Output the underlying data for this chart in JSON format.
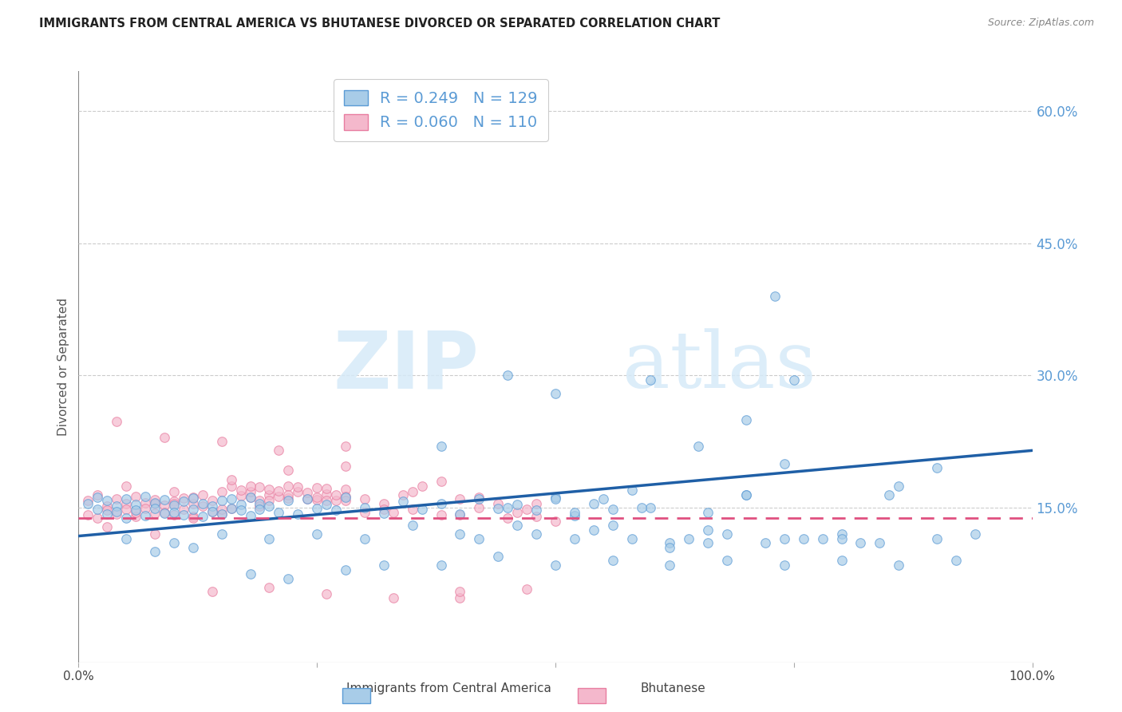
{
  "title": "IMMIGRANTS FROM CENTRAL AMERICA VS BHUTANESE DIVORCED OR SEPARATED CORRELATION CHART",
  "source": "Source: ZipAtlas.com",
  "ylabel": "Divorced or Separated",
  "ytick_labels": [
    "60.0%",
    "45.0%",
    "30.0%",
    "15.0%"
  ],
  "ytick_values": [
    0.6,
    0.45,
    0.3,
    0.15
  ],
  "xmin": 0.0,
  "xmax": 1.0,
  "ymin": -0.025,
  "ymax": 0.645,
  "legend_blue_r": "0.249",
  "legend_blue_n": "129",
  "legend_pink_r": "0.060",
  "legend_pink_n": "110",
  "legend_label_blue": "Immigrants from Central America",
  "legend_label_pink": "Bhutanese",
  "watermark_zip": "ZIP",
  "watermark_atlas": "atlas",
  "blue_color": "#a8cce8",
  "blue_edge_color": "#5b9bd5",
  "blue_line_color": "#1f5fa6",
  "pink_color": "#f4b8cc",
  "pink_edge_color": "#e87da0",
  "pink_line_color": "#e05080",
  "background": "#ffffff",
  "grid_color": "#cccccc",
  "blue_scatter_x": [
    0.01,
    0.02,
    0.02,
    0.03,
    0.03,
    0.04,
    0.04,
    0.05,
    0.05,
    0.06,
    0.06,
    0.07,
    0.07,
    0.08,
    0.08,
    0.09,
    0.09,
    0.1,
    0.1,
    0.11,
    0.11,
    0.12,
    0.12,
    0.13,
    0.13,
    0.14,
    0.14,
    0.15,
    0.15,
    0.16,
    0.16,
    0.17,
    0.17,
    0.18,
    0.18,
    0.19,
    0.19,
    0.2,
    0.21,
    0.22,
    0.23,
    0.24,
    0.25,
    0.26,
    0.27,
    0.28,
    0.3,
    0.32,
    0.34,
    0.36,
    0.38,
    0.4,
    0.42,
    0.44,
    0.46,
    0.48,
    0.5,
    0.52,
    0.54,
    0.56,
    0.38,
    0.42,
    0.46,
    0.5,
    0.54,
    0.58,
    0.62,
    0.66,
    0.7,
    0.74,
    0.48,
    0.52,
    0.56,
    0.6,
    0.64,
    0.68,
    0.72,
    0.76,
    0.8,
    0.84,
    0.58,
    0.62,
    0.66,
    0.7,
    0.74,
    0.78,
    0.82,
    0.86,
    0.9,
    0.94,
    0.6,
    0.65,
    0.7,
    0.75,
    0.8,
    0.85,
    0.9,
    0.5,
    0.55,
    0.45,
    0.4,
    0.35,
    0.3,
    0.25,
    0.2,
    0.15,
    0.1,
    0.05,
    0.08,
    0.12,
    0.18,
    0.22,
    0.28,
    0.32,
    0.38,
    0.44,
    0.5,
    0.56,
    0.62,
    0.68,
    0.74,
    0.8,
    0.86,
    0.92,
    0.45,
    0.52,
    0.59,
    0.66,
    0.73
  ],
  "blue_scatter_y": [
    0.155,
    0.148,
    0.162,
    0.143,
    0.158,
    0.152,
    0.146,
    0.16,
    0.138,
    0.154,
    0.147,
    0.163,
    0.141,
    0.156,
    0.149,
    0.144,
    0.159,
    0.153,
    0.145,
    0.157,
    0.142,
    0.161,
    0.148,
    0.155,
    0.14,
    0.152,
    0.146,
    0.158,
    0.143,
    0.16,
    0.149,
    0.154,
    0.147,
    0.162,
    0.141,
    0.155,
    0.148,
    0.152,
    0.145,
    0.158,
    0.143,
    0.16,
    0.149,
    0.154,
    0.147,
    0.162,
    0.15,
    0.144,
    0.157,
    0.148,
    0.155,
    0.143,
    0.16,
    0.149,
    0.154,
    0.147,
    0.162,
    0.141,
    0.155,
    0.148,
    0.22,
    0.115,
    0.13,
    0.28,
    0.125,
    0.17,
    0.11,
    0.125,
    0.165,
    0.115,
    0.12,
    0.115,
    0.13,
    0.15,
    0.115,
    0.12,
    0.11,
    0.115,
    0.12,
    0.11,
    0.115,
    0.105,
    0.11,
    0.165,
    0.2,
    0.115,
    0.11,
    0.175,
    0.115,
    0.12,
    0.295,
    0.22,
    0.25,
    0.295,
    0.115,
    0.165,
    0.195,
    0.16,
    0.16,
    0.3,
    0.12,
    0.13,
    0.115,
    0.12,
    0.115,
    0.12,
    0.11,
    0.115,
    0.1,
    0.105,
    0.075,
    0.07,
    0.08,
    0.085,
    0.085,
    0.095,
    0.085,
    0.09,
    0.085,
    0.09,
    0.085,
    0.09,
    0.085,
    0.09,
    0.15,
    0.145,
    0.15,
    0.145,
    0.39
  ],
  "pink_scatter_x": [
    0.01,
    0.01,
    0.02,
    0.02,
    0.03,
    0.03,
    0.04,
    0.04,
    0.05,
    0.05,
    0.06,
    0.06,
    0.07,
    0.07,
    0.08,
    0.08,
    0.09,
    0.09,
    0.1,
    0.1,
    0.11,
    0.11,
    0.12,
    0.12,
    0.13,
    0.13,
    0.14,
    0.14,
    0.15,
    0.15,
    0.16,
    0.16,
    0.17,
    0.17,
    0.18,
    0.18,
    0.19,
    0.19,
    0.2,
    0.2,
    0.21,
    0.21,
    0.22,
    0.22,
    0.23,
    0.23,
    0.24,
    0.24,
    0.25,
    0.25,
    0.26,
    0.26,
    0.27,
    0.27,
    0.28,
    0.28,
    0.3,
    0.32,
    0.34,
    0.36,
    0.38,
    0.4,
    0.42,
    0.44,
    0.46,
    0.48,
    0.5,
    0.1,
    0.15,
    0.2,
    0.25,
    0.3,
    0.35,
    0.4,
    0.45,
    0.08,
    0.12,
    0.18,
    0.22,
    0.28,
    0.32,
    0.38,
    0.05,
    0.1,
    0.16,
    0.22,
    0.28,
    0.35,
    0.42,
    0.48,
    0.06,
    0.12,
    0.19,
    0.26,
    0.33,
    0.4,
    0.47,
    0.03,
    0.08,
    0.14,
    0.2,
    0.26,
    0.33,
    0.4,
    0.47,
    0.04,
    0.09,
    0.15,
    0.21,
    0.28
  ],
  "pink_scatter_y": [
    0.158,
    0.142,
    0.165,
    0.138,
    0.152,
    0.147,
    0.16,
    0.143,
    0.155,
    0.148,
    0.163,
    0.14,
    0.156,
    0.149,
    0.144,
    0.159,
    0.153,
    0.145,
    0.157,
    0.142,
    0.161,
    0.148,
    0.155,
    0.14,
    0.152,
    0.165,
    0.146,
    0.158,
    0.143,
    0.168,
    0.149,
    0.175,
    0.164,
    0.17,
    0.162,
    0.168,
    0.174,
    0.158,
    0.165,
    0.171,
    0.163,
    0.169,
    0.175,
    0.161,
    0.168,
    0.174,
    0.16,
    0.167,
    0.173,
    0.159,
    0.166,
    0.172,
    0.158,
    0.165,
    0.171,
    0.163,
    0.16,
    0.155,
    0.165,
    0.175,
    0.18,
    0.16,
    0.15,
    0.155,
    0.145,
    0.14,
    0.135,
    0.155,
    0.148,
    0.158,
    0.162,
    0.145,
    0.148,
    0.142,
    0.138,
    0.155,
    0.162,
    0.175,
    0.165,
    0.158,
    0.148,
    0.142,
    0.175,
    0.168,
    0.182,
    0.193,
    0.197,
    0.168,
    0.162,
    0.155,
    0.145,
    0.138,
    0.152,
    0.158,
    0.145,
    0.048,
    0.058,
    0.128,
    0.12,
    0.055,
    0.06,
    0.052,
    0.048,
    0.055,
    0.148,
    0.248,
    0.23,
    0.225,
    0.215,
    0.22
  ],
  "blue_line_x": [
    0.0,
    1.0
  ],
  "blue_line_y_start": 0.118,
  "blue_line_y_end": 0.215,
  "pink_line_x": [
    0.0,
    1.0
  ],
  "pink_line_y_start": 0.138,
  "pink_line_y_end": 0.138
}
